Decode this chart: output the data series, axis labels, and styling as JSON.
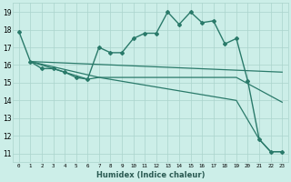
{
  "xlabel": "Humidex (Indice chaleur)",
  "bg_color": "#cceee8",
  "line_color": "#2a7a6a",
  "grid_color": "#aad4cc",
  "xlim": [
    -0.5,
    23.5
  ],
  "ylim": [
    10.5,
    19.5
  ],
  "yticks": [
    11,
    12,
    13,
    14,
    15,
    16,
    17,
    18,
    19
  ],
  "xticks": [
    0,
    1,
    2,
    3,
    4,
    5,
    6,
    7,
    8,
    9,
    10,
    11,
    12,
    13,
    14,
    15,
    16,
    17,
    18,
    19,
    20,
    21,
    22,
    23
  ],
  "lines": [
    {
      "x": [
        0,
        1,
        2,
        3,
        4,
        5,
        6,
        7,
        8,
        9,
        10,
        11,
        12,
        13,
        14,
        15,
        16,
        17,
        18,
        19,
        20,
        21,
        22,
        23
      ],
      "y": [
        17.9,
        16.2,
        15.8,
        15.8,
        15.6,
        15.3,
        15.2,
        17.0,
        16.7,
        16.7,
        17.5,
        17.8,
        17.8,
        19.0,
        18.3,
        19.0,
        18.4,
        18.5,
        17.2,
        17.5,
        15.1,
        11.8,
        11.1,
        11.1
      ],
      "marker": "D",
      "markersize": 2.0,
      "linewidth": 1.0,
      "has_marker": true
    },
    {
      "x": [
        1,
        6,
        7,
        19,
        23
      ],
      "y": [
        16.2,
        15.2,
        15.3,
        15.3,
        13.9
      ],
      "marker": null,
      "markersize": 0,
      "linewidth": 0.9,
      "has_marker": false
    },
    {
      "x": [
        1,
        7,
        19,
        21,
        22,
        23
      ],
      "y": [
        16.2,
        15.3,
        14.0,
        11.8,
        11.1,
        11.1
      ],
      "marker": null,
      "markersize": 0,
      "linewidth": 0.9,
      "has_marker": false
    },
    {
      "x": [
        1,
        23
      ],
      "y": [
        16.2,
        15.6
      ],
      "marker": null,
      "markersize": 0,
      "linewidth": 0.9,
      "has_marker": false
    }
  ]
}
